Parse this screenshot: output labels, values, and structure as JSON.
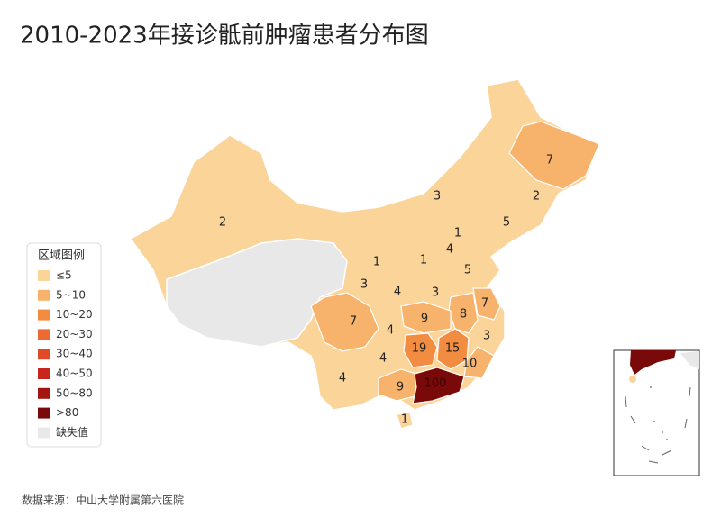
{
  "title": "2010-2023年接诊骶前肿瘤患者分布图",
  "source": "数据来源：中山大学附属第六医院",
  "legend": {
    "title": "区域图例",
    "items": [
      {
        "label": "≤5",
        "color": "#fbd49a"
      },
      {
        "label": "5~10",
        "color": "#f7b36c"
      },
      {
        "label": "10~20",
        "color": "#f28c40"
      },
      {
        "label": "20~30",
        "color": "#ec6a30"
      },
      {
        "label": "30~40",
        "color": "#e04a26"
      },
      {
        "label": "40~50",
        "color": "#c8261c"
      },
      {
        "label": "50~80",
        "color": "#a3150f"
      },
      {
        "label": ">80",
        "color": "#7a0909"
      },
      {
        "label": "缺失值",
        "color": "#e8e8e8"
      }
    ]
  },
  "regions": [
    {
      "value": 7,
      "color": "#f7b36c"
    },
    {
      "value": 2,
      "color": "#fbd49a"
    },
    {
      "value": 5,
      "color": "#fbd49a"
    },
    {
      "value": 3,
      "color": "#fbd49a"
    },
    {
      "value": 2,
      "color": "#fbd49a"
    },
    {
      "value": 1,
      "color": "#fbd49a"
    },
    {
      "value": 4,
      "color": "#fbd49a"
    },
    {
      "value": 1,
      "color": "#fbd49a"
    },
    {
      "value": 5,
      "color": "#fbd49a"
    },
    {
      "value": 1,
      "color": "#fbd49a"
    },
    {
      "value": 3,
      "color": "#fbd49a"
    },
    {
      "value": 4,
      "color": "#fbd49a"
    },
    {
      "value": 3,
      "color": "#fbd49a"
    },
    {
      "value": 7,
      "color": "#f7b36c"
    },
    {
      "value": 8,
      "color": "#f7b36c"
    },
    {
      "value": 9,
      "color": "#f7b36c"
    },
    {
      "value": 7,
      "color": "#f7b36c"
    },
    {
      "value": 4,
      "color": "#fbd49a"
    },
    {
      "value": 3,
      "color": "#fbd49a"
    },
    {
      "value": 19,
      "color": "#f28c40"
    },
    {
      "value": 15,
      "color": "#f28c40"
    },
    {
      "value": 4,
      "color": "#fbd49a"
    },
    {
      "value": 10,
      "color": "#f7b36c"
    },
    {
      "value": 4,
      "color": "#fbd49a"
    },
    {
      "value": 9,
      "color": "#f7b36c"
    },
    {
      "value": 100,
      "color": "#7a0909"
    },
    {
      "value": 1,
      "color": "#fbd49a"
    }
  ]
}
